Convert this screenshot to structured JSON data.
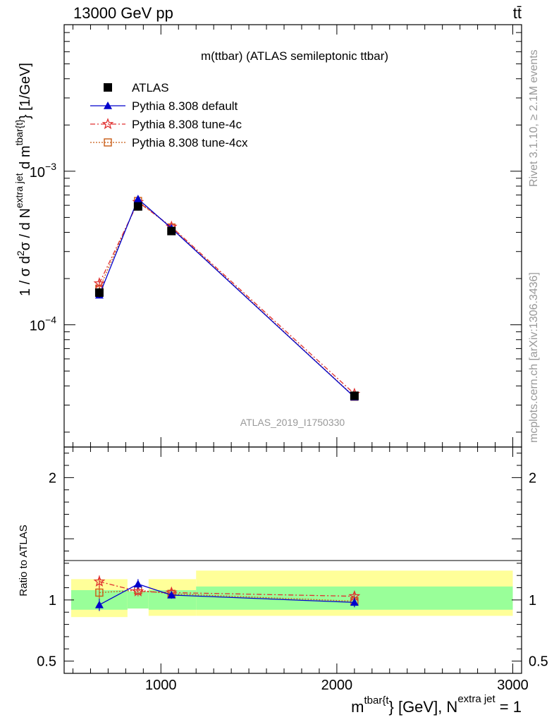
{
  "header": {
    "energy_label": "13000 GeV pp",
    "process_label": "tt̄"
  },
  "side": {
    "rivet_label": "Rivet 3.1.10, ≥ 2.1M events",
    "source_label": "mcplots.cern.ch [arXiv:1306.3436]"
  },
  "chart_data": [
    {
      "type": "line",
      "title": "m(ttbar) (ATLAS semileptonic ttbar)",
      "analysis_label": "ATLAS_2019_I1750330",
      "ylabel": "1 / σ d²σ / d N^{extra jet} d m^{tbar{t}} [1/GeV]",
      "ylabel_parts": {
        "a": "1 / σ d",
        "a_sup": "2",
        "b": "σ / d N",
        "b_sup": "extra jet",
        "c": " d m",
        "c_sup": "tbar{t}",
        "d": "} [1/GeV]"
      },
      "yscale": "log",
      "xlim": [
        450,
        3050
      ],
      "ylim": [
        1.6e-05,
        0.009
      ],
      "ytick_labels": [
        {
          "value": 0.001,
          "base": "10",
          "exp": "−3"
        },
        {
          "value": 0.0001,
          "base": "10",
          "exp": "−4"
        }
      ],
      "legend_placement": "top-left",
      "x": [
        650,
        870,
        1060,
        2100
      ],
      "series": [
        {
          "name": "ATLAS",
          "color": "#000000",
          "marker": "square",
          "values": [
            0.000162,
            0.00059,
            0.000408,
            3.45e-05
          ],
          "err": [
            0.07,
            0.06,
            0.04,
            0.05
          ]
        },
        {
          "name": "Pythia 8.308 default",
          "color": "#0000cc",
          "marker": "triangle",
          "line": "solid",
          "values": [
            0.000156,
            0.00066,
            0.000425,
            3.38e-05
          ],
          "err": [
            0.04,
            0.04,
            0.03,
            0.04
          ]
        },
        {
          "name": "Pythia 8.308 tune-4c",
          "color": "#e03030",
          "marker": "star",
          "line": "dashdot",
          "values": [
            0.000186,
            0.00063,
            0.000435,
            3.55e-05
          ],
          "err": [
            0.04,
            0.04,
            0.03,
            0.04
          ]
        },
        {
          "name": "Pythia 8.308 tune-4cx",
          "color": "#c85a14",
          "marker": "open-square",
          "line": "dotted",
          "values": [
            0.000172,
            0.00064,
            0.00043,
            3.4e-05
          ],
          "err": [
            0.04,
            0.04,
            0.03,
            0.04
          ]
        }
      ]
    },
    {
      "type": "line",
      "ylabel": "Ratio to ATLAS",
      "xlabel_parts": {
        "a": "m",
        "a_sup": "tbar{t",
        "b": "} [GeV], N",
        "b_sup": "extra jet",
        "c": " = 1"
      },
      "xlim": [
        450,
        3050
      ],
      "ylim": [
        0.4,
        2.25
      ],
      "yticks": [
        0.5,
        1,
        2
      ],
      "ytick_labels": [
        "0.5",
        "1",
        "2"
      ],
      "xticks": [
        1000,
        2000,
        3000
      ],
      "xtick_labels": [
        "1000",
        "2000",
        "3000"
      ],
      "bins": [
        {
          "lo": 490,
          "hi": 810,
          "band_in": [
            0.92,
            1.08
          ],
          "band_out": [
            0.86,
            1.17
          ]
        },
        {
          "lo": 810,
          "hi": 930,
          "band_in": [
            0.93,
            1.07
          ],
          "band_out": [
            0.93,
            1.07
          ]
        },
        {
          "lo": 930,
          "hi": 1200,
          "band_in": [
            0.92,
            1.08
          ],
          "band_out": [
            0.87,
            1.17
          ]
        },
        {
          "lo": 1200,
          "hi": 3000,
          "band_in": [
            0.92,
            1.11
          ],
          "band_out": [
            0.87,
            1.24
          ]
        }
      ],
      "band_colors": {
        "inner": "#99ff99",
        "outer": "#ffff99"
      },
      "x": [
        650,
        870,
        1060,
        2100
      ],
      "series": [
        {
          "name": "Pythia 8.308 default",
          "color": "#0000cc",
          "marker": "triangle",
          "line": "solid",
          "values": [
            0.96,
            1.13,
            1.04,
            0.98
          ],
          "err": [
            0.05,
            0.04,
            0.03,
            0.04
          ]
        },
        {
          "name": "Pythia 8.308 tune-4c",
          "color": "#e03030",
          "marker": "star",
          "line": "dashdot",
          "values": [
            1.15,
            1.07,
            1.06,
            1.03
          ],
          "err": [
            0.05,
            0.04,
            0.03,
            0.04
          ]
        },
        {
          "name": "Pythia 8.308 tune-4cx",
          "color": "#c85a14",
          "marker": "open-square",
          "line": "dotted",
          "values": [
            1.06,
            1.08,
            1.05,
            0.99
          ],
          "err": [
            0.05,
            0.04,
            0.03,
            0.04
          ]
        }
      ]
    }
  ]
}
